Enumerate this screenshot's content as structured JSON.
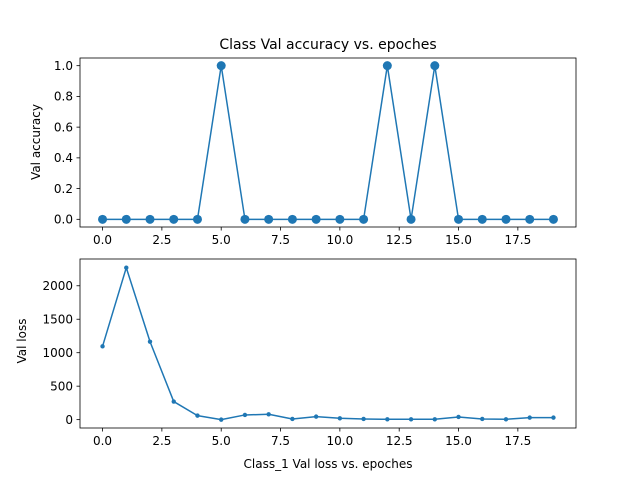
{
  "chart_data": [
    {
      "type": "line",
      "title": "Class Val accuracy vs. epoches",
      "xlabel": "",
      "ylabel": "Val accuracy",
      "xlim": [
        -0.95,
        19.95
      ],
      "ylim": [
        -0.05,
        1.05
      ],
      "xticks": [
        0,
        2.5,
        5,
        7.5,
        10,
        12.5,
        15,
        17.5
      ],
      "xtick_labels": [
        "0.0",
        "2.5",
        "5.0",
        "7.5",
        "10.0",
        "12.5",
        "15.0",
        "17.5"
      ],
      "yticks": [
        0,
        0.2,
        0.4,
        0.6,
        0.8,
        1.0
      ],
      "ytick_labels": [
        "0.0",
        "0.2",
        "0.4",
        "0.6",
        "0.8",
        "1.0"
      ],
      "grid": false,
      "marker": "large-circle",
      "color": "#1f77b4",
      "x": [
        0,
        1,
        2,
        3,
        4,
        5,
        6,
        7,
        8,
        9,
        10,
        11,
        12,
        13,
        14,
        15,
        16,
        17,
        18,
        19
      ],
      "values": [
        0,
        0,
        0,
        0,
        0,
        1,
        0,
        0,
        0,
        0,
        0,
        0,
        1,
        0,
        1,
        0,
        0,
        0,
        0,
        0
      ]
    },
    {
      "type": "line",
      "title": "",
      "xlabel": "Class_1 Val loss vs. epoches",
      "ylabel": "Val loss",
      "xlim": [
        -0.95,
        19.95
      ],
      "ylim": [
        -125,
        2400
      ],
      "xticks": [
        0,
        2.5,
        5,
        7.5,
        10,
        12.5,
        15,
        17.5
      ],
      "xtick_labels": [
        "0.0",
        "2.5",
        "5.0",
        "7.5",
        "10.0",
        "12.5",
        "15.0",
        "17.5"
      ],
      "yticks": [
        0,
        500,
        1000,
        1500,
        2000
      ],
      "ytick_labels": [
        "0",
        "500",
        "1000",
        "1500",
        "2000"
      ],
      "grid": false,
      "marker": "small-dot",
      "color": "#1f77b4",
      "x": [
        0,
        1,
        2,
        3,
        4,
        5,
        6,
        7,
        8,
        9,
        10,
        11,
        12,
        13,
        14,
        15,
        16,
        17,
        18,
        19
      ],
      "values": [
        1095,
        2270,
        1165,
        270,
        60,
        0,
        70,
        80,
        10,
        45,
        20,
        10,
        5,
        5,
        5,
        40,
        10,
        5,
        30,
        30
      ]
    }
  ]
}
